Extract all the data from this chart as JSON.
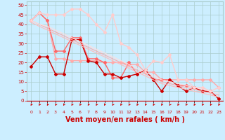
{
  "background_color": "#cceeff",
  "grid_color": "#aacccc",
  "xlabel": "Vent moyen/en rafales ( km/h )",
  "xlabel_color": "#cc0000",
  "xlabel_fontsize": 7,
  "tick_color": "#cc0000",
  "x_ticks": [
    0,
    1,
    2,
    3,
    4,
    5,
    6,
    7,
    8,
    9,
    10,
    11,
    12,
    13,
    14,
    15,
    16,
    17,
    18,
    19,
    20,
    21,
    22,
    23
  ],
  "ylim": [
    0,
    52
  ],
  "xlim": [
    -0.5,
    23.5
  ],
  "yticks": [
    0,
    5,
    10,
    15,
    20,
    25,
    30,
    35,
    40,
    45,
    50
  ],
  "series": [
    {
      "x": [
        0,
        1,
        2,
        3,
        4,
        5,
        6,
        7,
        8,
        9,
        10,
        11,
        12,
        13,
        14,
        15,
        16,
        17,
        18,
        19,
        20,
        21,
        22,
        23
      ],
      "y": [
        42,
        46,
        42,
        22,
        22,
        21,
        21,
        21,
        21,
        20,
        20,
        20,
        19,
        19,
        15,
        15,
        11,
        11,
        11,
        11,
        11,
        11,
        11,
        7
      ],
      "color": "#ffaaaa",
      "lw": 1.0,
      "marker": "D",
      "ms": 2.0
    },
    {
      "x": [
        0,
        1,
        2,
        3,
        4,
        5,
        6,
        7,
        8,
        9,
        10,
        11,
        12,
        13,
        14,
        15,
        16,
        17,
        18,
        19,
        20,
        21,
        22,
        23
      ],
      "y": [
        42,
        46,
        42,
        26,
        26,
        33,
        33,
        22,
        22,
        20,
        12,
        12,
        20,
        14,
        16,
        11,
        11,
        11,
        8,
        8,
        7,
        5,
        5,
        1
      ],
      "color": "#ff6666",
      "lw": 1.0,
      "marker": "D",
      "ms": 2.0
    },
    {
      "x": [
        0,
        1,
        2,
        3,
        4,
        5,
        6,
        7,
        8,
        9,
        10,
        11,
        12,
        13,
        14,
        15,
        16,
        17,
        18,
        19,
        20,
        21,
        22,
        23
      ],
      "y": [
        18,
        23,
        23,
        14,
        14,
        32,
        32,
        21,
        20,
        14,
        14,
        12,
        13,
        14,
        16,
        11,
        5,
        11,
        8,
        5,
        7,
        5,
        5,
        1
      ],
      "color": "#cc0000",
      "lw": 1.0,
      "marker": "D",
      "ms": 2.0
    },
    {
      "x": [
        0,
        1,
        2,
        3,
        4,
        5,
        6,
        7,
        8,
        9,
        10,
        11,
        12,
        13,
        14,
        15,
        16,
        17,
        18,
        19,
        20,
        21,
        22,
        23
      ],
      "y": [
        42,
        46,
        45,
        45,
        45,
        48,
        48,
        45,
        40,
        36,
        45,
        30,
        28,
        24,
        16,
        21,
        20,
        24,
        11,
        11,
        7,
        7,
        5,
        7
      ],
      "color": "#ffcccc",
      "lw": 1.0,
      "marker": "D",
      "ms": 2.0
    },
    {
      "x": [
        0,
        1,
        2,
        3,
        4,
        5,
        6,
        7,
        8,
        9,
        10,
        11,
        12,
        13,
        14,
        15,
        16,
        17,
        18,
        19,
        20,
        21,
        22,
        23
      ],
      "y": [
        42,
        40,
        38,
        36,
        34,
        32,
        30,
        28,
        26,
        24,
        22,
        20,
        18,
        16,
        14,
        12,
        10,
        9,
        8,
        7,
        6,
        5,
        4,
        3
      ],
      "color": "#ffaaaa",
      "lw": 0.8,
      "marker": null,
      "ms": 0
    },
    {
      "x": [
        0,
        1,
        2,
        3,
        4,
        5,
        6,
        7,
        8,
        9,
        10,
        11,
        12,
        13,
        14,
        15,
        16,
        17,
        18,
        19,
        20,
        21,
        22,
        23
      ],
      "y": [
        41,
        39,
        37,
        35,
        33,
        31,
        29,
        27,
        25,
        23,
        21,
        19,
        17,
        15,
        13,
        11,
        9,
        8,
        7,
        6,
        5,
        4,
        3,
        2
      ],
      "color": "#ffbbbb",
      "lw": 0.8,
      "marker": null,
      "ms": 0
    },
    {
      "x": [
        0,
        1,
        2,
        3,
        4,
        5,
        6,
        7,
        8,
        9,
        10,
        11,
        12,
        13,
        14,
        15,
        16,
        17,
        18,
        19,
        20,
        21,
        22,
        23
      ],
      "y": [
        42,
        40,
        39,
        37,
        35,
        33,
        31,
        29,
        27,
        25,
        23,
        21,
        19,
        17,
        15,
        13,
        11,
        10,
        9,
        8,
        7,
        6,
        5,
        4
      ],
      "color": "#ffdddd",
      "lw": 0.8,
      "marker": null,
      "ms": 0
    }
  ],
  "arrow_color": "#cc0000"
}
